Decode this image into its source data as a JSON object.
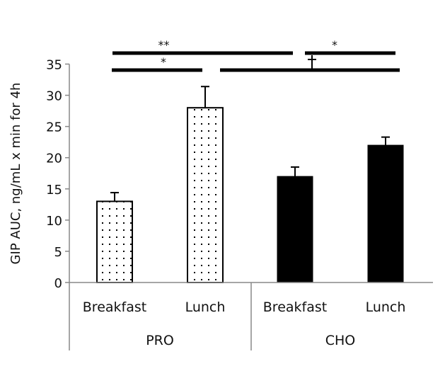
{
  "chart_data": {
    "type": "bar",
    "title": "",
    "ylabel": "GIP AUC, ng/mL x min for 4h",
    "xlabel": "",
    "ylim": [
      0,
      35
    ],
    "yticks": [
      "0",
      "5",
      "10",
      "15",
      "20",
      "25",
      "30",
      "35"
    ],
    "grid": false,
    "groups": [
      "PRO",
      "CHO"
    ],
    "categories": [
      "Breakfast",
      "Lunch",
      "Breakfast",
      "Lunch"
    ],
    "bars": [
      {
        "group": "PRO",
        "category": "Breakfast",
        "value": 13.0,
        "error": 1.4,
        "fill": "dotted"
      },
      {
        "group": "PRO",
        "category": "Lunch",
        "value": 28.0,
        "error": 3.4,
        "fill": "dotted"
      },
      {
        "group": "CHO",
        "category": "Breakfast",
        "value": 17.0,
        "error": 1.5,
        "fill": "#000000"
      },
      {
        "group": "CHO",
        "category": "Lunch",
        "value": 22.0,
        "error": 1.3,
        "fill": "#000000"
      }
    ],
    "significance": [
      {
        "from": 0,
        "to": 3,
        "label": "**",
        "row": 1
      },
      {
        "from": 2,
        "to": 3,
        "label": "*",
        "row": 1
      },
      {
        "from": 0,
        "to": 1,
        "label": "*",
        "row": 2
      },
      {
        "from": 1,
        "to": 3,
        "label": "",
        "row": 2
      }
    ]
  }
}
